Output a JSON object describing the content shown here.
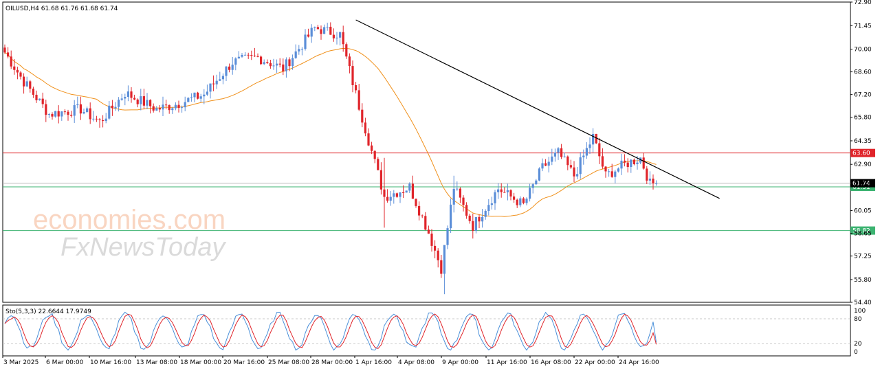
{
  "main_title": "OILUSD,H4  61.68 61.76 61.68 61.74",
  "indicator_title": "Sto(5,3,3) 22.6644 17.9749",
  "watermark": {
    "brand": "economies.com",
    "sub": "FxNewsToday"
  },
  "colors": {
    "bull": "#5b8ed8",
    "bear": "#e0242a",
    "ma": "#f0901a",
    "trendline": "#000000",
    "resistance": "#e0242a",
    "support": "#3cb371",
    "stoch_main": "#4a90d9",
    "stoch_signal": "#e0242a"
  },
  "chart_data": [
    {
      "type": "candlestick",
      "symbol": "OILUSD",
      "timeframe": "H4",
      "ylim": [
        54.4,
        72.9
      ],
      "y_ticks": [
        "72.90",
        "71.45",
        "70.00",
        "68.60",
        "67.20",
        "65.80",
        "64.35",
        "62.90",
        "61.74",
        "60.05",
        "58.65",
        "57.25",
        "55.80",
        "54.40"
      ],
      "x_tick_labels": [
        "3 Mar 2025",
        "6 Mar 00:00",
        "10 Mar 16:00",
        "13 Mar 08:00",
        "18 Mar 00:00",
        "20 Mar 16:00",
        "25 Mar 08:00",
        "28 Mar 00:00",
        "1 Apr 16:00",
        "4 Apr 08:00",
        "9 Apr 00:00",
        "11 Apr 16:00",
        "16 Apr 08:00",
        "22 Apr 00:00",
        "24 Apr 16:00"
      ],
      "key_points": [
        {
          "bar": 0,
          "close": 69.8
        },
        {
          "bar": 6,
          "close": 68.0
        },
        {
          "bar": 14,
          "close": 66.0
        },
        {
          "bar": 24,
          "close": 66.3
        },
        {
          "bar": 30,
          "close": 65.5
        },
        {
          "bar": 38,
          "close": 67.3
        },
        {
          "bar": 48,
          "close": 66.3
        },
        {
          "bar": 54,
          "close": 66.6
        },
        {
          "bar": 63,
          "close": 67.2
        },
        {
          "bar": 72,
          "close": 69.2
        },
        {
          "bar": 80,
          "close": 69.5
        },
        {
          "bar": 88,
          "close": 68.8
        },
        {
          "bar": 98,
          "close": 71.3
        },
        {
          "bar": 106,
          "close": 70.9
        },
        {
          "bar": 112,
          "close": 66.5
        },
        {
          "bar": 120,
          "close": 60.9
        },
        {
          "bar": 128,
          "close": 61.5
        },
        {
          "bar": 134,
          "close": 58.7
        },
        {
          "bar": 138,
          "close": 56.5
        },
        {
          "bar": 142,
          "close": 61.5
        },
        {
          "bar": 148,
          "close": 59.1
        },
        {
          "bar": 156,
          "close": 61.4
        },
        {
          "bar": 164,
          "close": 60.4
        },
        {
          "bar": 170,
          "close": 62.7
        },
        {
          "bar": 175,
          "close": 63.6
        },
        {
          "bar": 180,
          "close": 62.2
        },
        {
          "bar": 186,
          "close": 64.6
        },
        {
          "bar": 190,
          "close": 62.2
        },
        {
          "bar": 196,
          "close": 62.9
        },
        {
          "bar": 201,
          "close": 63.3
        },
        {
          "bar": 204,
          "close": 61.7
        },
        {
          "bar": 206,
          "close": 61.74
        }
      ],
      "current_price": "61.74",
      "moving_average": "orange, lagging average of price",
      "trendline": {
        "from": {
          "bar": 111,
          "price": 71.8
        },
        "to": {
          "bar": 226,
          "price": 60.8
        }
      },
      "levels": [
        {
          "price": 63.6,
          "label": "63.60",
          "role": "resistance"
        },
        {
          "price": 61.51,
          "label": "61.51",
          "role": "support"
        },
        {
          "price": 58.82,
          "label": "58.82",
          "role": "support"
        }
      ]
    },
    {
      "type": "line",
      "name": "Sto(5,3,3)",
      "ylim": [
        0,
        100
      ],
      "levels": [
        80,
        20
      ],
      "y_ticks": [
        "100",
        "80",
        "20",
        "0"
      ],
      "main_last": 22.6644,
      "signal_last": 17.9749
    }
  ]
}
